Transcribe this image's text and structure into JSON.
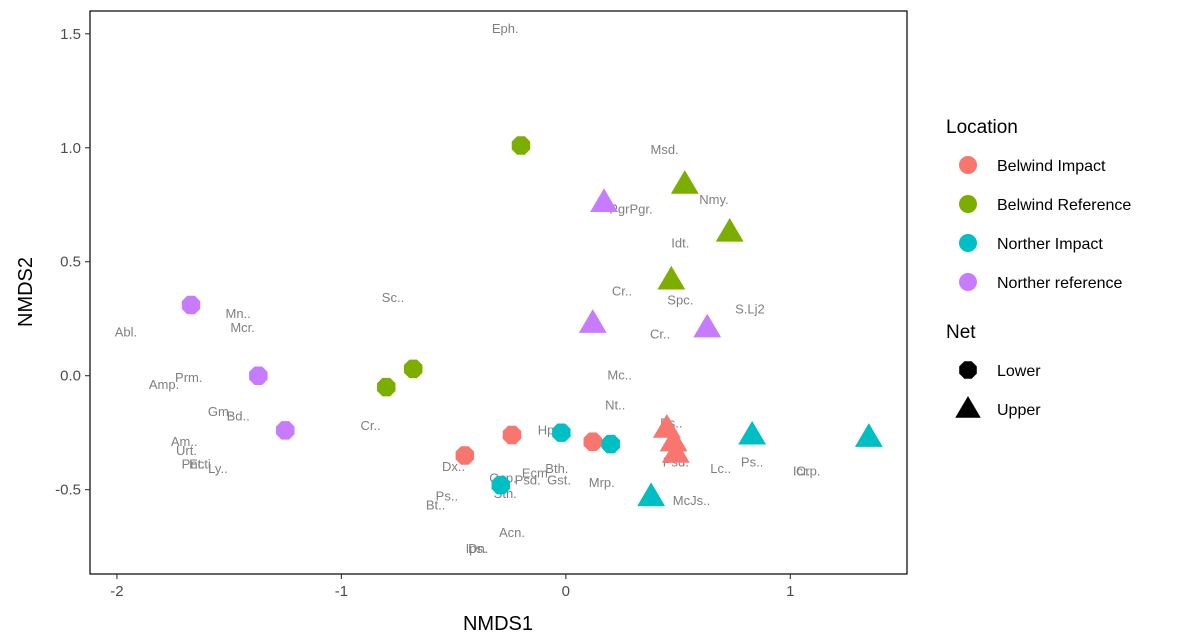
{
  "chart_data": {
    "type": "scatter",
    "xlabel": "NMDS1",
    "ylabel": "NMDS2",
    "xlim": [
      -2.12,
      1.52
    ],
    "ylim": [
      -0.87,
      1.6
    ],
    "x_ticks": [
      {
        "value": -2,
        "label": "-2"
      },
      {
        "value": -1,
        "label": "-1"
      },
      {
        "value": 0,
        "label": "0"
      },
      {
        "value": 1,
        "label": "1"
      }
    ],
    "y_ticks": [
      {
        "value": -0.5,
        "label": "-0.5"
      },
      {
        "value": 0.0,
        "label": "0.0"
      },
      {
        "value": 0.5,
        "label": "0.5"
      },
      {
        "value": 1.0,
        "label": "1.0"
      },
      {
        "value": 1.5,
        "label": "1.5"
      }
    ],
    "grid": false,
    "legend_position": "right",
    "colors": {
      "Belwind Impact": "#F8766D",
      "Belwind Reference": "#7CAE00",
      "Norther Impact": "#00BFC4",
      "Norther reference": "#C77CFF"
    },
    "legends": [
      {
        "title": "Location",
        "entries": [
          {
            "label": "Belwind Impact",
            "color": "#F8766D",
            "shape": "circle"
          },
          {
            "label": "Belwind Reference",
            "color": "#7CAE00",
            "shape": "circle"
          },
          {
            "label": "Norther Impact",
            "color": "#00BFC4",
            "shape": "circle"
          },
          {
            "label": "Norther reference",
            "color": "#C77CFF",
            "shape": "circle"
          }
        ]
      },
      {
        "title": "Net",
        "entries": [
          {
            "label": "Lower",
            "color": "#000000",
            "shape": "octagon"
          },
          {
            "label": "Upper",
            "color": "#000000",
            "shape": "triangle"
          }
        ]
      }
    ],
    "points": [
      {
        "x": -0.2,
        "y": 1.01,
        "location": "Belwind Reference",
        "net": "Lower"
      },
      {
        "x": -0.8,
        "y": -0.05,
        "location": "Belwind Reference",
        "net": "Lower"
      },
      {
        "x": -0.68,
        "y": 0.03,
        "location": "Belwind Reference",
        "net": "Lower"
      },
      {
        "x": 0.53,
        "y": 0.84,
        "location": "Belwind Reference",
        "net": "Upper"
      },
      {
        "x": 0.73,
        "y": 0.63,
        "location": "Belwind Reference",
        "net": "Upper"
      },
      {
        "x": 0.47,
        "y": 0.42,
        "location": "Belwind Reference",
        "net": "Upper"
      },
      {
        "x": -1.67,
        "y": 0.31,
        "location": "Norther reference",
        "net": "Lower"
      },
      {
        "x": -1.37,
        "y": 0.0,
        "location": "Norther reference",
        "net": "Lower"
      },
      {
        "x": -1.25,
        "y": -0.24,
        "location": "Norther reference",
        "net": "Lower"
      },
      {
        "x": 0.17,
        "y": 0.76,
        "location": "Norther reference",
        "net": "Upper"
      },
      {
        "x": 0.12,
        "y": 0.23,
        "location": "Norther reference",
        "net": "Upper"
      },
      {
        "x": 0.63,
        "y": 0.21,
        "location": "Norther reference",
        "net": "Upper"
      },
      {
        "x": -0.45,
        "y": -0.35,
        "location": "Belwind Impact",
        "net": "Lower"
      },
      {
        "x": -0.24,
        "y": -0.26,
        "location": "Belwind Impact",
        "net": "Lower"
      },
      {
        "x": 0.12,
        "y": -0.29,
        "location": "Belwind Impact",
        "net": "Lower"
      },
      {
        "x": 0.45,
        "y": -0.23,
        "location": "Belwind Impact",
        "net": "Upper"
      },
      {
        "x": 0.48,
        "y": -0.29,
        "location": "Belwind Impact",
        "net": "Upper"
      },
      {
        "x": 0.49,
        "y": -0.34,
        "location": "Belwind Impact",
        "net": "Upper"
      },
      {
        "x": -0.02,
        "y": -0.25,
        "location": "Norther Impact",
        "net": "Lower"
      },
      {
        "x": 0.2,
        "y": -0.3,
        "location": "Norther Impact",
        "net": "Lower"
      },
      {
        "x": -0.29,
        "y": -0.48,
        "location": "Norther Impact",
        "net": "Lower"
      },
      {
        "x": 0.83,
        "y": -0.26,
        "location": "Norther Impact",
        "net": "Upper"
      },
      {
        "x": 1.35,
        "y": -0.27,
        "location": "Norther Impact",
        "net": "Upper"
      },
      {
        "x": 0.38,
        "y": -0.53,
        "location": "Norther Impact",
        "net": "Upper"
      }
    ],
    "species_labels": [
      {
        "text": "Eph.",
        "x": -0.27,
        "y": 1.52
      },
      {
        "text": "Msd.",
        "x": 0.44,
        "y": 0.99
      },
      {
        "text": "Nmy.",
        "x": 0.66,
        "y": 0.77
      },
      {
        "text": "PgrPgr.",
        "x": 0.29,
        "y": 0.73
      },
      {
        "text": "Idt.",
        "x": 0.51,
        "y": 0.58
      },
      {
        "text": "Cr..",
        "x": 0.25,
        "y": 0.37
      },
      {
        "text": "Spc.",
        "x": 0.51,
        "y": 0.33
      },
      {
        "text": "S.Lj2",
        "x": 0.82,
        "y": 0.29
      },
      {
        "text": "Cr..",
        "x": 0.42,
        "y": 0.18
      },
      {
        "text": "Sc..",
        "x": -0.77,
        "y": 0.34
      },
      {
        "text": "Mn..",
        "x": -1.46,
        "y": 0.27
      },
      {
        "text": "Mcr.",
        "x": -1.44,
        "y": 0.21
      },
      {
        "text": "Abl.",
        "x": -1.96,
        "y": 0.19
      },
      {
        "text": "Mc..",
        "x": 0.24,
        "y": 0.0
      },
      {
        "text": "Prm.",
        "x": -1.68,
        "y": -0.01
      },
      {
        "text": "Amp.",
        "x": -1.79,
        "y": -0.04
      },
      {
        "text": "Nt..",
        "x": 0.22,
        "y": -0.13
      },
      {
        "text": "Gm.",
        "x": -1.54,
        "y": -0.16
      },
      {
        "text": "Bd..",
        "x": -1.46,
        "y": -0.18
      },
      {
        "text": "Ps..",
        "x": 0.47,
        "y": -0.21
      },
      {
        "text": "Cr..",
        "x": -0.87,
        "y": -0.22
      },
      {
        "text": "Hp.",
        "x": -0.08,
        "y": -0.24
      },
      {
        "text": "Am..",
        "x": -1.7,
        "y": -0.29
      },
      {
        "text": "Urt.",
        "x": -1.69,
        "y": -0.33
      },
      {
        "text": "Pnt.",
        "x": -1.66,
        "y": -0.39
      },
      {
        "text": "Ecti",
        "x": -1.63,
        "y": -0.39
      },
      {
        "text": "Ly..",
        "x": -1.55,
        "y": -0.41
      },
      {
        "text": "Psd.",
        "x": 0.49,
        "y": -0.38
      },
      {
        "text": "Ps..",
        "x": 0.83,
        "y": -0.38
      },
      {
        "text": "Lc..",
        "x": 0.69,
        "y": -0.41
      },
      {
        "text": "Icr.",
        "x": 1.05,
        "y": -0.42
      },
      {
        "text": "Crp.",
        "x": 1.08,
        "y": -0.42
      },
      {
        "text": "Dx..",
        "x": -0.5,
        "y": -0.4
      },
      {
        "text": "Bth.",
        "x": -0.04,
        "y": -0.41
      },
      {
        "text": "Ecm.",
        "x": -0.13,
        "y": -0.43
      },
      {
        "text": "Gsp.",
        "x": -0.28,
        "y": -0.45
      },
      {
        "text": "Psd.",
        "x": -0.17,
        "y": -0.46
      },
      {
        "text": "Gst.",
        "x": -0.03,
        "y": -0.46
      },
      {
        "text": "Mrp.",
        "x": 0.16,
        "y": -0.47
      },
      {
        "text": "Sth.",
        "x": -0.27,
        "y": -0.52
      },
      {
        "text": "Ps..",
        "x": -0.53,
        "y": -0.53
      },
      {
        "text": "Bt..",
        "x": -0.58,
        "y": -0.57
      },
      {
        "text": "McJs..",
        "x": 0.56,
        "y": -0.55
      },
      {
        "text": "Acn.",
        "x": -0.24,
        "y": -0.69
      },
      {
        "text": "Dn.",
        "x": -0.39,
        "y": -0.76
      },
      {
        "text": "Ips.",
        "x": -0.4,
        "y": -0.76
      }
    ]
  }
}
